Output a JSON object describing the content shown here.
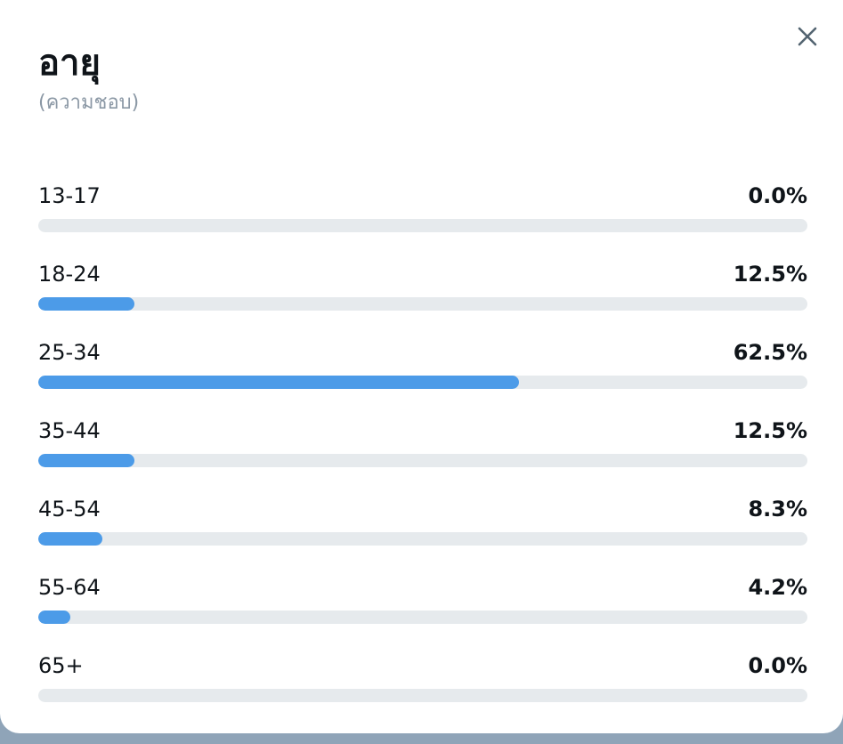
{
  "header": {
    "title": "อายุ",
    "subtitle": "(ความชอบ)",
    "close_icon": "close-icon"
  },
  "colors": {
    "bar_fill": "#4c9be8",
    "bar_track": "#e6eaed",
    "text": "#0f1419",
    "subtitle": "#8b98a5"
  },
  "chart_data": {
    "type": "bar",
    "orientation": "horizontal",
    "title": "อายุ",
    "subtitle": "(ความชอบ)",
    "categories": [
      "13-17",
      "18-24",
      "25-34",
      "35-44",
      "45-54",
      "55-64",
      "65+"
    ],
    "values": [
      0.0,
      12.5,
      62.5,
      12.5,
      8.3,
      4.2,
      0.0
    ],
    "value_labels": [
      "0.0%",
      "12.5%",
      "62.5%",
      "12.5%",
      "8.3%",
      "4.2%",
      "0.0%"
    ],
    "unit": "%",
    "xlim": [
      0,
      100
    ],
    "grid": false
  }
}
